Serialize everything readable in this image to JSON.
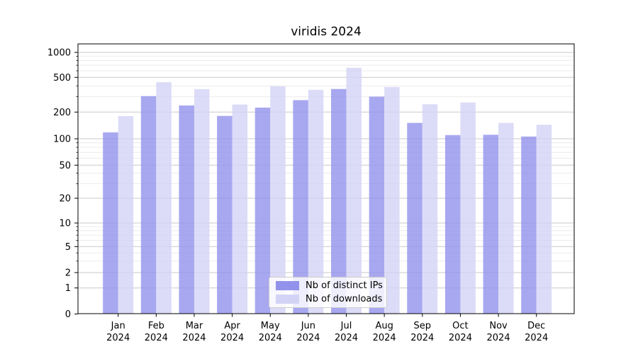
{
  "chart_data": {
    "type": "bar",
    "title": "viridis 2024",
    "categories": [
      "Jan",
      "Feb",
      "Mar",
      "Apr",
      "May",
      "Jun",
      "Jul",
      "Aug",
      "Sep",
      "Oct",
      "Nov",
      "Dec"
    ],
    "x_tick_year": "2024",
    "series": [
      {
        "name": "Nb of distinct IPs",
        "color": "#9292ec",
        "values": [
          118,
          305,
          238,
          181,
          225,
          274,
          368,
          301,
          151,
          110,
          111,
          106
        ]
      },
      {
        "name": "Nb of downloads",
        "color": "#d3d3f6",
        "values": [
          180,
          440,
          367,
          244,
          395,
          360,
          652,
          388,
          246,
          258,
          151,
          144
        ]
      }
    ],
    "bar_opacity": 0.8,
    "yscale": "symlog",
    "yticks": [
      0,
      1,
      2,
      5,
      10,
      20,
      50,
      100,
      200,
      500,
      1000
    ],
    "ylim": [
      0,
      1250
    ],
    "grid": true,
    "legend_position": "lower center"
  }
}
